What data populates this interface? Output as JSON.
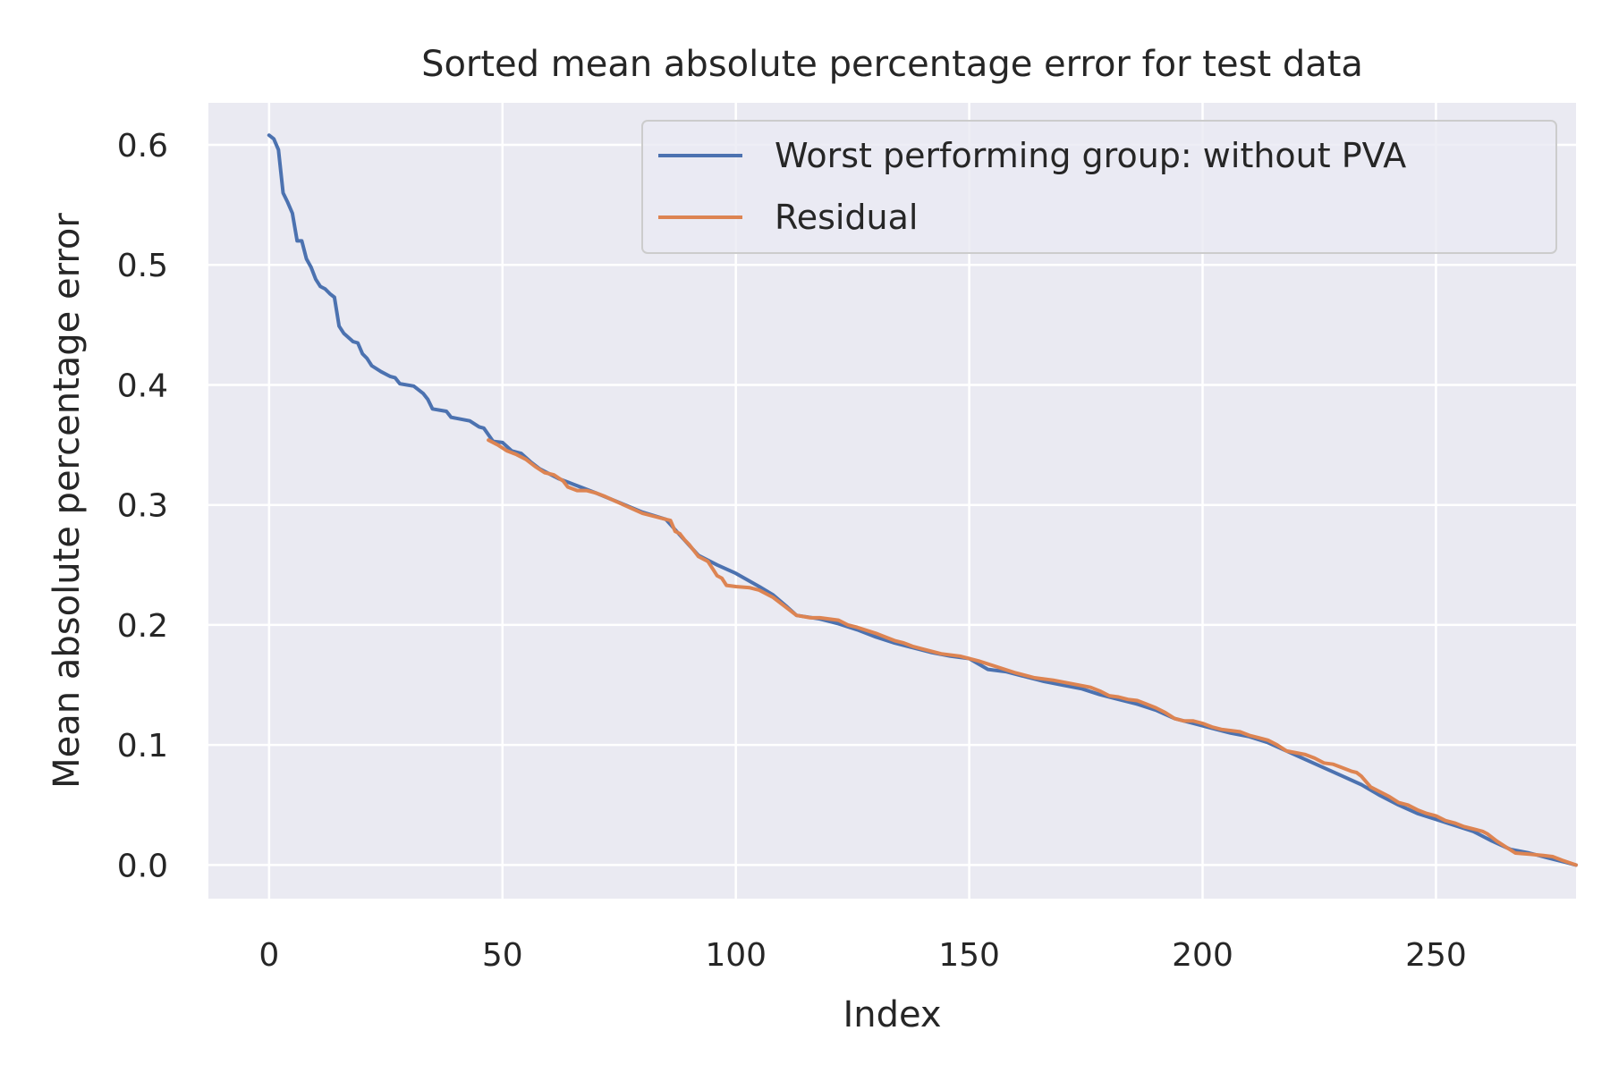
{
  "chart_data": {
    "type": "line",
    "title": "Sorted mean absolute percentage error for test data",
    "xlabel": "Index",
    "ylabel": "Mean absolute percentage error",
    "xlim": [
      -13,
      280
    ],
    "ylim": [
      -0.028,
      0.635
    ],
    "xticks": [
      0,
      50,
      100,
      150,
      200,
      250
    ],
    "yticks": [
      0.0,
      0.1,
      0.2,
      0.3,
      0.4,
      0.5,
      0.6
    ],
    "xtick_labels": [
      "0",
      "50",
      "100",
      "150",
      "200",
      "250"
    ],
    "ytick_labels": [
      "0.0",
      "0.1",
      "0.2",
      "0.3",
      "0.4",
      "0.5",
      "0.6"
    ],
    "grid": true,
    "legend_position": "top-right",
    "series": [
      {
        "name": "Worst performing group: without PVA",
        "color": "#4c72b0",
        "points": [
          [
            0,
            0.608
          ],
          [
            1,
            0.605
          ],
          [
            2,
            0.596
          ],
          [
            3,
            0.56
          ],
          [
            4,
            0.552
          ],
          [
            5,
            0.543
          ],
          [
            6,
            0.52
          ],
          [
            7,
            0.52
          ],
          [
            8,
            0.505
          ],
          [
            9,
            0.498
          ],
          [
            10,
            0.488
          ],
          [
            11,
            0.482
          ],
          [
            12,
            0.48
          ],
          [
            13,
            0.476
          ],
          [
            14,
            0.473
          ],
          [
            15,
            0.449
          ],
          [
            16,
            0.443
          ],
          [
            18,
            0.436
          ],
          [
            19,
            0.435
          ],
          [
            20,
            0.426
          ],
          [
            21,
            0.422
          ],
          [
            22,
            0.416
          ],
          [
            24,
            0.411
          ],
          [
            26,
            0.407
          ],
          [
            27,
            0.406
          ],
          [
            28,
            0.401
          ],
          [
            31,
            0.399
          ],
          [
            33,
            0.393
          ],
          [
            34,
            0.388
          ],
          [
            35,
            0.38
          ],
          [
            38,
            0.378
          ],
          [
            39,
            0.373
          ],
          [
            43,
            0.37
          ],
          [
            45,
            0.365
          ],
          [
            46,
            0.364
          ],
          [
            48,
            0.353
          ],
          [
            50,
            0.352
          ],
          [
            52,
            0.345
          ],
          [
            54,
            0.343
          ],
          [
            56,
            0.336
          ],
          [
            58,
            0.33
          ],
          [
            60,
            0.326
          ],
          [
            62,
            0.322
          ],
          [
            66,
            0.316
          ],
          [
            70,
            0.31
          ],
          [
            75,
            0.302
          ],
          [
            80,
            0.294
          ],
          [
            85,
            0.288
          ],
          [
            88,
            0.275
          ],
          [
            92,
            0.258
          ],
          [
            96,
            0.25
          ],
          [
            100,
            0.243
          ],
          [
            105,
            0.232
          ],
          [
            108,
            0.225
          ],
          [
            111,
            0.215
          ],
          [
            113,
            0.208
          ],
          [
            118,
            0.205
          ],
          [
            122,
            0.201
          ],
          [
            126,
            0.196
          ],
          [
            130,
            0.19
          ],
          [
            134,
            0.185
          ],
          [
            138,
            0.181
          ],
          [
            142,
            0.177
          ],
          [
            146,
            0.174
          ],
          [
            150,
            0.172
          ],
          [
            154,
            0.163
          ],
          [
            158,
            0.161
          ],
          [
            162,
            0.157
          ],
          [
            166,
            0.153
          ],
          [
            170,
            0.15
          ],
          [
            174,
            0.147
          ],
          [
            178,
            0.142
          ],
          [
            182,
            0.138
          ],
          [
            186,
            0.134
          ],
          [
            190,
            0.129
          ],
          [
            194,
            0.122
          ],
          [
            198,
            0.118
          ],
          [
            202,
            0.114
          ],
          [
            206,
            0.11
          ],
          [
            210,
            0.107
          ],
          [
            214,
            0.102
          ],
          [
            218,
            0.095
          ],
          [
            222,
            0.088
          ],
          [
            226,
            0.081
          ],
          [
            230,
            0.074
          ],
          [
            234,
            0.067
          ],
          [
            238,
            0.058
          ],
          [
            242,
            0.05
          ],
          [
            246,
            0.043
          ],
          [
            250,
            0.038
          ],
          [
            254,
            0.033
          ],
          [
            258,
            0.028
          ],
          [
            262,
            0.02
          ],
          [
            266,
            0.013
          ],
          [
            270,
            0.01
          ],
          [
            274,
            0.006
          ],
          [
            278,
            0.002
          ],
          [
            280,
            0.0
          ]
        ]
      },
      {
        "name": "Residual",
        "color": "#dd8452",
        "points": [
          [
            47,
            0.354
          ],
          [
            49,
            0.35
          ],
          [
            51,
            0.345
          ],
          [
            53,
            0.342
          ],
          [
            55,
            0.338
          ],
          [
            57,
            0.332
          ],
          [
            59,
            0.327
          ],
          [
            61,
            0.325
          ],
          [
            63,
            0.32
          ],
          [
            64,
            0.315
          ],
          [
            66,
            0.312
          ],
          [
            68,
            0.312
          ],
          [
            70,
            0.31
          ],
          [
            72,
            0.307
          ],
          [
            76,
            0.3
          ],
          [
            80,
            0.293
          ],
          [
            84,
            0.289
          ],
          [
            86,
            0.287
          ],
          [
            87,
            0.278
          ],
          [
            88,
            0.276
          ],
          [
            89,
            0.271
          ],
          [
            90,
            0.267
          ],
          [
            91,
            0.262
          ],
          [
            92,
            0.257
          ],
          [
            94,
            0.253
          ],
          [
            95,
            0.247
          ],
          [
            96,
            0.241
          ],
          [
            97,
            0.239
          ],
          [
            98,
            0.233
          ],
          [
            100,
            0.232
          ],
          [
            103,
            0.231
          ],
          [
            105,
            0.229
          ],
          [
            108,
            0.223
          ],
          [
            111,
            0.214
          ],
          [
            113,
            0.208
          ],
          [
            116,
            0.206
          ],
          [
            118,
            0.206
          ],
          [
            122,
            0.204
          ],
          [
            124,
            0.2
          ],
          [
            126,
            0.198
          ],
          [
            130,
            0.193
          ],
          [
            132,
            0.19
          ],
          [
            134,
            0.187
          ],
          [
            136,
            0.185
          ],
          [
            138,
            0.182
          ],
          [
            140,
            0.18
          ],
          [
            144,
            0.176
          ],
          [
            148,
            0.174
          ],
          [
            152,
            0.17
          ],
          [
            156,
            0.165
          ],
          [
            160,
            0.16
          ],
          [
            164,
            0.156
          ],
          [
            168,
            0.154
          ],
          [
            172,
            0.151
          ],
          [
            176,
            0.148
          ],
          [
            178,
            0.145
          ],
          [
            180,
            0.141
          ],
          [
            182,
            0.14
          ],
          [
            184,
            0.138
          ],
          [
            186,
            0.137
          ],
          [
            188,
            0.134
          ],
          [
            190,
            0.131
          ],
          [
            192,
            0.127
          ],
          [
            194,
            0.122
          ],
          [
            196,
            0.12
          ],
          [
            198,
            0.12
          ],
          [
            200,
            0.118
          ],
          [
            202,
            0.115
          ],
          [
            204,
            0.113
          ],
          [
            208,
            0.111
          ],
          [
            210,
            0.108
          ],
          [
            212,
            0.106
          ],
          [
            214,
            0.104
          ],
          [
            216,
            0.1
          ],
          [
            218,
            0.095
          ],
          [
            222,
            0.092
          ],
          [
            224,
            0.089
          ],
          [
            226,
            0.085
          ],
          [
            228,
            0.084
          ],
          [
            230,
            0.081
          ],
          [
            232,
            0.078
          ],
          [
            233,
            0.077
          ],
          [
            234,
            0.074
          ],
          [
            236,
            0.065
          ],
          [
            238,
            0.061
          ],
          [
            240,
            0.057
          ],
          [
            242,
            0.052
          ],
          [
            244,
            0.05
          ],
          [
            246,
            0.046
          ],
          [
            248,
            0.043
          ],
          [
            250,
            0.041
          ],
          [
            252,
            0.037
          ],
          [
            254,
            0.035
          ],
          [
            256,
            0.032
          ],
          [
            258,
            0.03
          ],
          [
            260,
            0.028
          ],
          [
            261,
            0.026
          ],
          [
            263,
            0.02
          ],
          [
            265,
            0.015
          ],
          [
            267,
            0.01
          ],
          [
            270,
            0.009
          ],
          [
            273,
            0.008
          ],
          [
            275,
            0.007
          ],
          [
            277,
            0.004
          ],
          [
            280,
            0.0
          ]
        ]
      }
    ]
  }
}
